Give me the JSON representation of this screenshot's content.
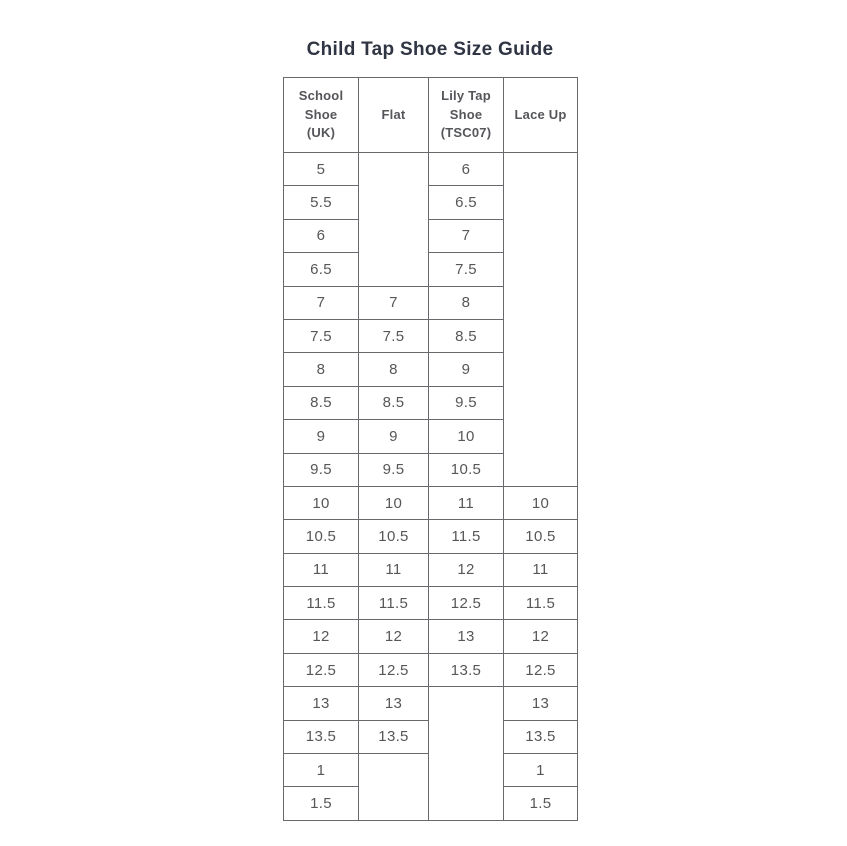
{
  "colors": {
    "background": "#ffffff",
    "title_text": "#2f3543",
    "header_text": "#55565a",
    "cell_text": "#565759",
    "border": "#68696c"
  },
  "chart_data": {
    "type": "table",
    "title": "Child Tap Shoe Size Guide",
    "columns": [
      "School Shoe (UK)",
      "Flat",
      "Lily Tap Shoe (TSC07)",
      "Lace Up"
    ],
    "rows": [
      {
        "school_shoe_uk": "5",
        "flat": null,
        "lily_tap_tsc07": "6",
        "lace_up": null
      },
      {
        "school_shoe_uk": "5.5",
        "flat": null,
        "lily_tap_tsc07": "6.5",
        "lace_up": null
      },
      {
        "school_shoe_uk": "6",
        "flat": null,
        "lily_tap_tsc07": "7",
        "lace_up": null
      },
      {
        "school_shoe_uk": "6.5",
        "flat": null,
        "lily_tap_tsc07": "7.5",
        "lace_up": null
      },
      {
        "school_shoe_uk": "7",
        "flat": "7",
        "lily_tap_tsc07": "8",
        "lace_up": null
      },
      {
        "school_shoe_uk": "7.5",
        "flat": "7.5",
        "lily_tap_tsc07": "8.5",
        "lace_up": null
      },
      {
        "school_shoe_uk": "8",
        "flat": "8",
        "lily_tap_tsc07": "9",
        "lace_up": null
      },
      {
        "school_shoe_uk": "8.5",
        "flat": "8.5",
        "lily_tap_tsc07": "9.5",
        "lace_up": null
      },
      {
        "school_shoe_uk": "9",
        "flat": "9",
        "lily_tap_tsc07": "10",
        "lace_up": null
      },
      {
        "school_shoe_uk": "9.5",
        "flat": "9.5",
        "lily_tap_tsc07": "10.5",
        "lace_up": null
      },
      {
        "school_shoe_uk": "10",
        "flat": "10",
        "lily_tap_tsc07": "11",
        "lace_up": "10"
      },
      {
        "school_shoe_uk": "10.5",
        "flat": "10.5",
        "lily_tap_tsc07": "11.5",
        "lace_up": "10.5"
      },
      {
        "school_shoe_uk": "11",
        "flat": "11",
        "lily_tap_tsc07": "12",
        "lace_up": "11"
      },
      {
        "school_shoe_uk": "11.5",
        "flat": "11.5",
        "lily_tap_tsc07": "12.5",
        "lace_up": "11.5"
      },
      {
        "school_shoe_uk": "12",
        "flat": "12",
        "lily_tap_tsc07": "13",
        "lace_up": "12"
      },
      {
        "school_shoe_uk": "12.5",
        "flat": "12.5",
        "lily_tap_tsc07": "13.5",
        "lace_up": "12.5"
      },
      {
        "school_shoe_uk": "13",
        "flat": "13",
        "lily_tap_tsc07": null,
        "lace_up": "13"
      },
      {
        "school_shoe_uk": "13.5",
        "flat": "13.5",
        "lily_tap_tsc07": null,
        "lace_up": "13.5"
      },
      {
        "school_shoe_uk": "1",
        "flat": null,
        "lily_tap_tsc07": null,
        "lace_up": "1"
      },
      {
        "school_shoe_uk": "1.5",
        "flat": null,
        "lily_tap_tsc07": null,
        "lace_up": "1.5"
      }
    ]
  }
}
